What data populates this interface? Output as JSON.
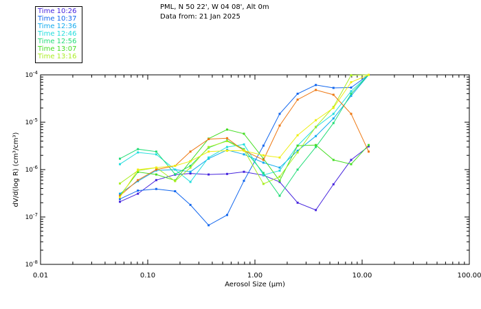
{
  "header": {
    "location": "PML, N 50 22', W 04 08', Alt 0m",
    "date_line": "Data from: 21 Jan 2025"
  },
  "legend": [
    {
      "label": "Time 10:26",
      "color": "#4422dd"
    },
    {
      "label": "Time 10:37",
      "color": "#1166ee"
    },
    {
      "label": "Time 12:36",
      "color": "#11aaee"
    },
    {
      "label": "Time 12:46",
      "color": "#22dddd"
    },
    {
      "label": "Time 12:56",
      "color": "#22dd77"
    },
    {
      "label": "Time 13:07",
      "color": "#44dd22"
    },
    {
      "label": "Time 13:16",
      "color": "#aaee22"
    }
  ],
  "chart_data": {
    "type": "line",
    "xlabel": "Aerosol Size (μm)",
    "ylabel": "dV/d(log R) (cm³/cm³)",
    "x_scale": "log",
    "y_scale": "log",
    "xlim": [
      0.01,
      100
    ],
    "ylim": [
      1e-08,
      0.0001
    ],
    "x_ticks": [
      {
        "value": 0.01,
        "label": "0.01"
      },
      {
        "value": 0.1,
        "label": "0.10"
      },
      {
        "value": 1,
        "label": "1.00"
      },
      {
        "value": 10,
        "label": "10.00"
      },
      {
        "value": 100,
        "label": "100.00"
      }
    ],
    "y_ticks": [
      {
        "value": 1e-08,
        "mantissa": "10",
        "exponent": "-8"
      },
      {
        "value": 1e-07,
        "mantissa": "10",
        "exponent": "-7"
      },
      {
        "value": 1e-06,
        "mantissa": "10",
        "exponent": "-6"
      },
      {
        "value": 1e-05,
        "mantissa": "10",
        "exponent": "-5"
      },
      {
        "value": 0.0001,
        "mantissa": "10",
        "exponent": "-4"
      }
    ],
    "x": [
      0.055,
      0.081,
      0.12,
      0.18,
      0.25,
      0.37,
      0.55,
      0.79,
      1.2,
      1.7,
      2.5,
      3.7,
      5.4,
      7.9,
      11.5
    ],
    "series": [
      {
        "name": "Time 10:26",
        "color": "#4422dd",
        "values": [
          2.1e-07,
          3.1e-07,
          6e-07,
          7.8e-07,
          8.3e-07,
          7.9e-07,
          8.1e-07,
          9e-07,
          7.6e-07,
          5.5e-07,
          2e-07,
          1.4e-07,
          4.9e-07,
          1.6e-06,
          3.1e-06
        ]
      },
      {
        "name": "Time 10:37",
        "color": "#1166ee",
        "values": [
          2.4e-07,
          3.6e-07,
          3.9e-07,
          3.5e-07,
          1.8e-07,
          6.7e-08,
          1.1e-07,
          5.8e-07,
          3.2e-06,
          1.5e-05,
          4e-05,
          6.1e-05,
          5.3e-05,
          5.4e-05,
          0.0001
        ]
      },
      {
        "name": "Time 12:36",
        "color": "#11aaee",
        "values": [
          3.1e-07,
          5.7e-07,
          9.6e-07,
          1e-06,
          9e-07,
          1.7e-06,
          2.6e-06,
          2.1e-06,
          1.4e-06,
          1.1e-06,
          2.5e-06,
          5.1e-06,
          1.2e-05,
          3.6e-05,
          0.0001
        ]
      },
      {
        "name": "Time 12:46",
        "color": "#22dddd",
        "values": [
          1.3e-06,
          2.3e-06,
          2.1e-06,
          1e-06,
          5.5e-07,
          1.8e-06,
          3e-06,
          3.4e-06,
          7.7e-07,
          9.5e-07,
          3.2e-06,
          7.8e-06,
          1.5e-05,
          4.5e-05,
          0.0001
        ]
      },
      {
        "name": "Time 12:56",
        "color": "#22dd77",
        "values": [
          1.7e-06,
          2.7e-06,
          2.4e-06,
          8e-07,
          1.2e-06,
          2.9e-06,
          4.1e-06,
          2.7e-06,
          8.5e-07,
          2.8e-07,
          1e-06,
          3e-06,
          9.6e-06,
          4e-05,
          0.0001
        ]
      },
      {
        "name": "Time 13:07",
        "color": "#44dd22",
        "values": [
          2.8e-07,
          8.9e-07,
          7.9e-07,
          5.9e-07,
          1.5e-06,
          4.5e-06,
          7e-06,
          5.7e-06,
          1.7e-06,
          5.8e-07,
          3.2e-06,
          3.3e-06,
          1.6e-06,
          1.3e-06,
          3.3e-06
        ]
      },
      {
        "name": "Time 13:16",
        "color": "#aaee22",
        "values": [
          5.1e-07,
          9.5e-07,
          1.1e-06,
          5.7e-07,
          1.1e-06,
          3e-06,
          4e-06,
          2.6e-06,
          5e-07,
          7.1e-07,
          2.3e-06,
          8e-06,
          2.1e-05,
          9.8e-05,
          0.0001
        ]
      },
      {
        "name": "",
        "color": "#ee7711",
        "values": [
          2.8e-07,
          6e-07,
          1e-06,
          1.2e-06,
          2.4e-06,
          4.4e-06,
          4.6e-06,
          2.5e-06,
          1.6e-06,
          8.5e-06,
          3e-05,
          4.8e-05,
          3.8e-05,
          1.5e-05,
          2.4e-06
        ]
      },
      {
        "name": "",
        "color": "#eeee11",
        "values": [
          2.6e-07,
          1e-06,
          1.1e-06,
          1.2e-06,
          1.5e-06,
          2.4e-06,
          2.5e-06,
          2.5e-06,
          2e-06,
          1.8e-06,
          5.3e-06,
          1.1e-05,
          2e-05,
          7e-05,
          0.0001
        ]
      }
    ]
  }
}
